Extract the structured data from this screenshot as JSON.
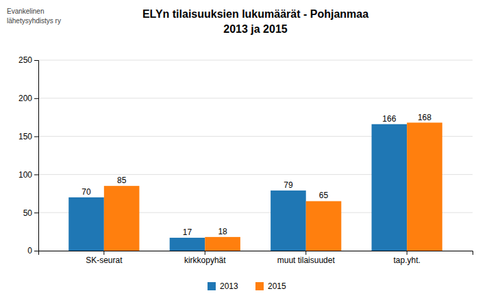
{
  "chart_data": {
    "type": "bar",
    "title": "ELYn tilaisuuksien lukumäärät - Pohjanmaa",
    "subtitle": "2013 ja 2015",
    "annotations": [
      "Evankelinen",
      "lähetysyhdistys ry"
    ],
    "categories": [
      "SK-seurat",
      "kirkkopyhät",
      "muut tilaisuudet",
      "tap.yht."
    ],
    "series": [
      {
        "name": "2013",
        "values": [
          70,
          17,
          79,
          166
        ]
      },
      {
        "name": "2015",
        "values": [
          85,
          18,
          65,
          168
        ]
      }
    ],
    "ylim": [
      0,
      250
    ],
    "yticks": [
      0,
      50,
      100,
      150,
      200,
      250
    ],
    "grid": true,
    "legend": "bottom",
    "data_labels": true
  }
}
